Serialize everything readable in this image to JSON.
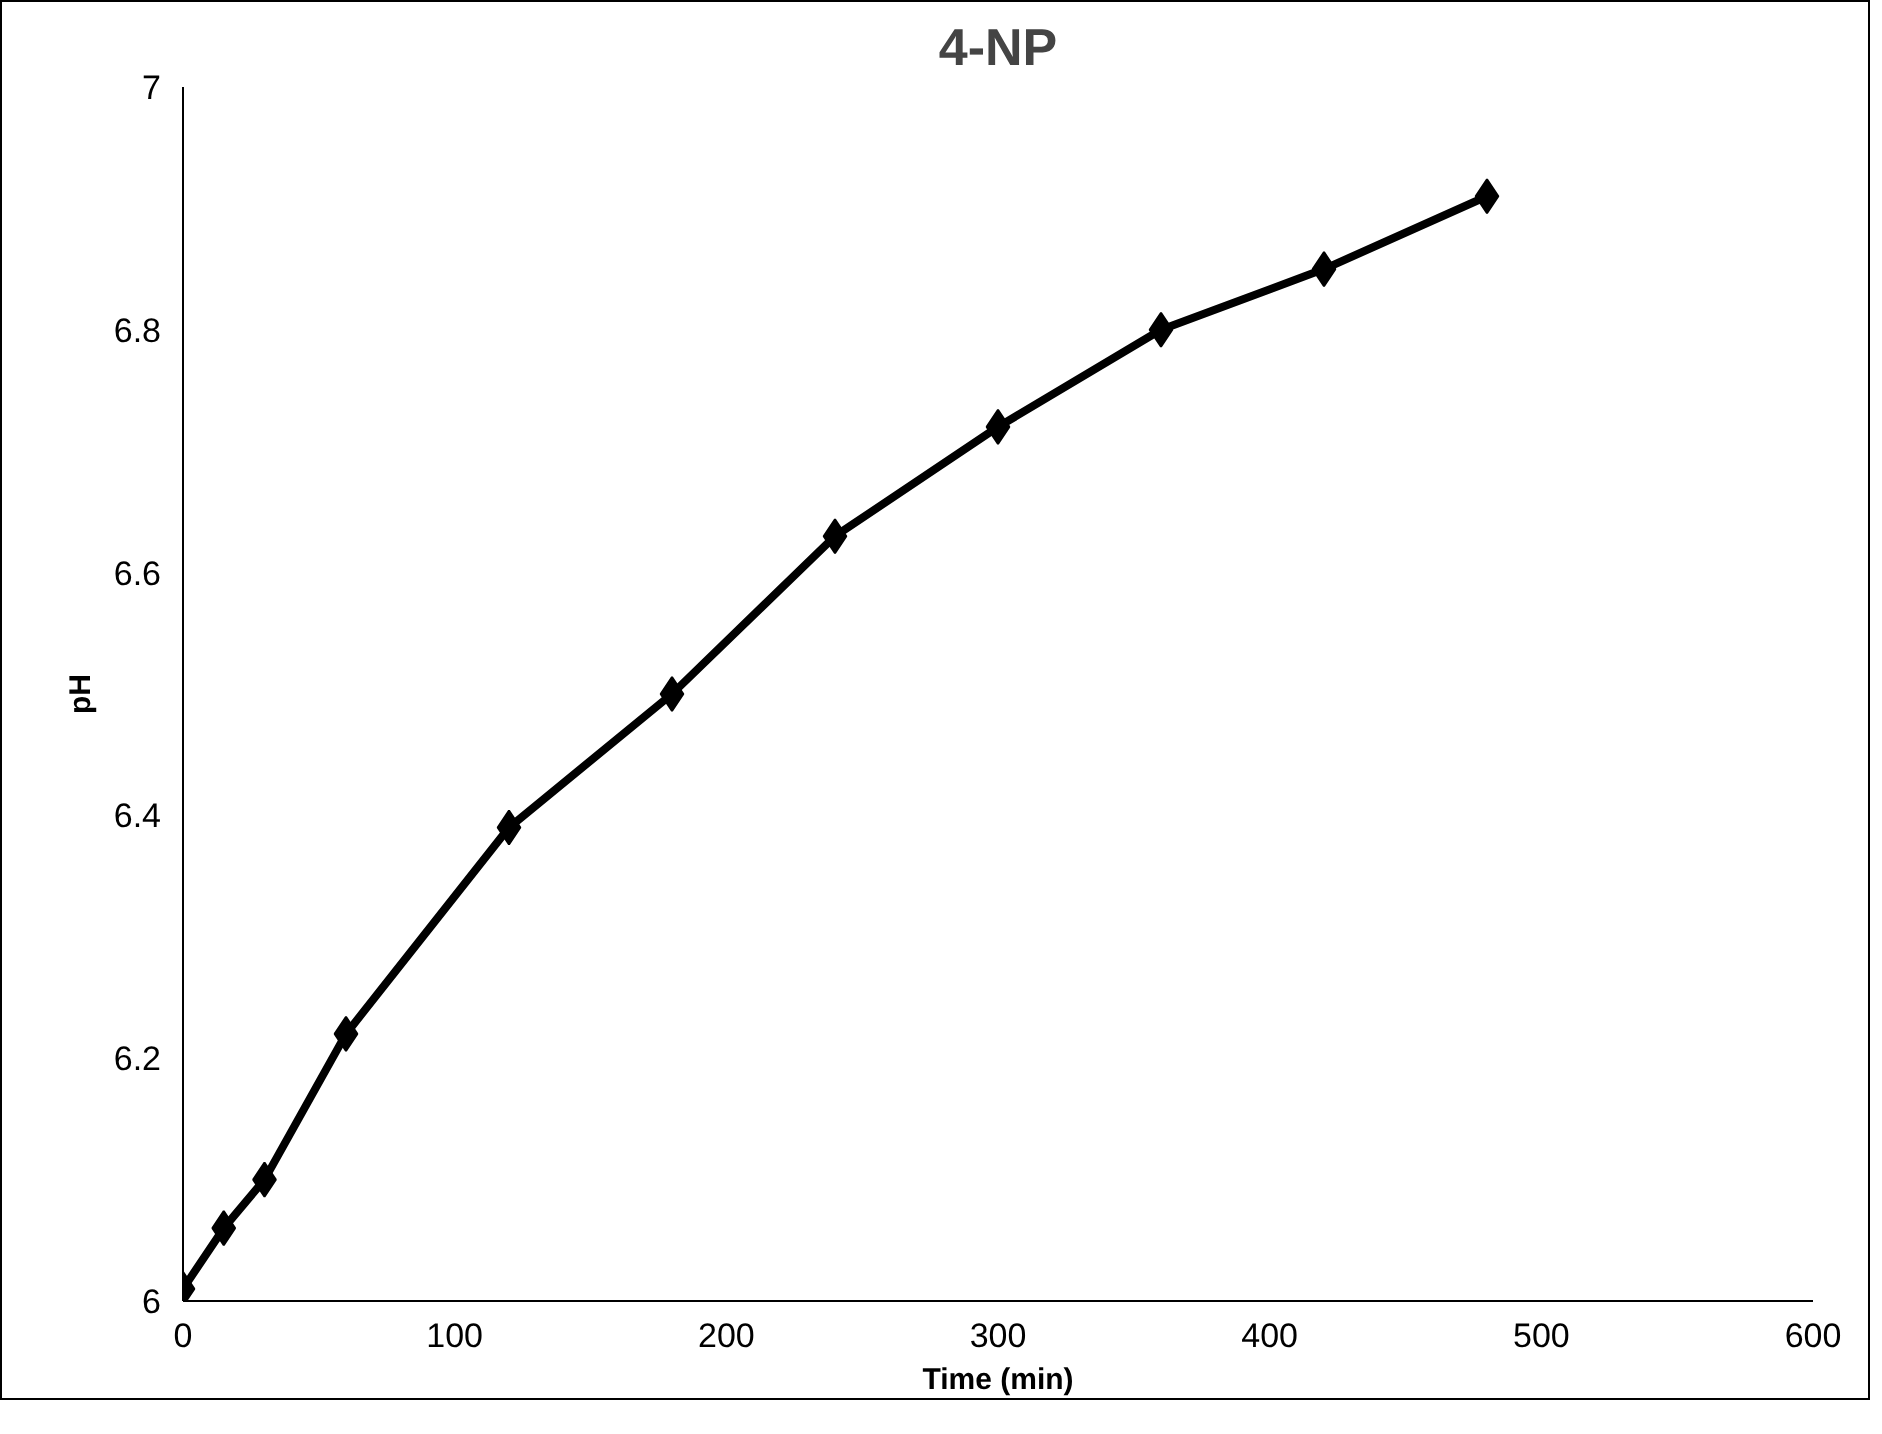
{
  "chart_data": {
    "type": "line",
    "title": "4-NP",
    "xlabel": "Time (min)",
    "ylabel": "pH",
    "x": [
      0,
      15,
      30,
      60,
      120,
      180,
      240,
      300,
      360,
      420,
      480
    ],
    "series": [
      {
        "color": "#000000",
        "values": [
          6.01,
          6.06,
          6.1,
          6.22,
          6.39,
          6.5,
          6.63,
          6.72,
          6.8,
          6.85,
          6.91
        ]
      }
    ],
    "xlim": [
      0,
      600
    ],
    "xticks": [
      0,
      100,
      200,
      300,
      400,
      500,
      600
    ],
    "ylim": [
      6,
      7
    ],
    "yticks": [
      6,
      6.2,
      6.4,
      6.6,
      6.8,
      7
    ],
    "grid": false,
    "marker": "diamond",
    "line_style": "solid"
  }
}
